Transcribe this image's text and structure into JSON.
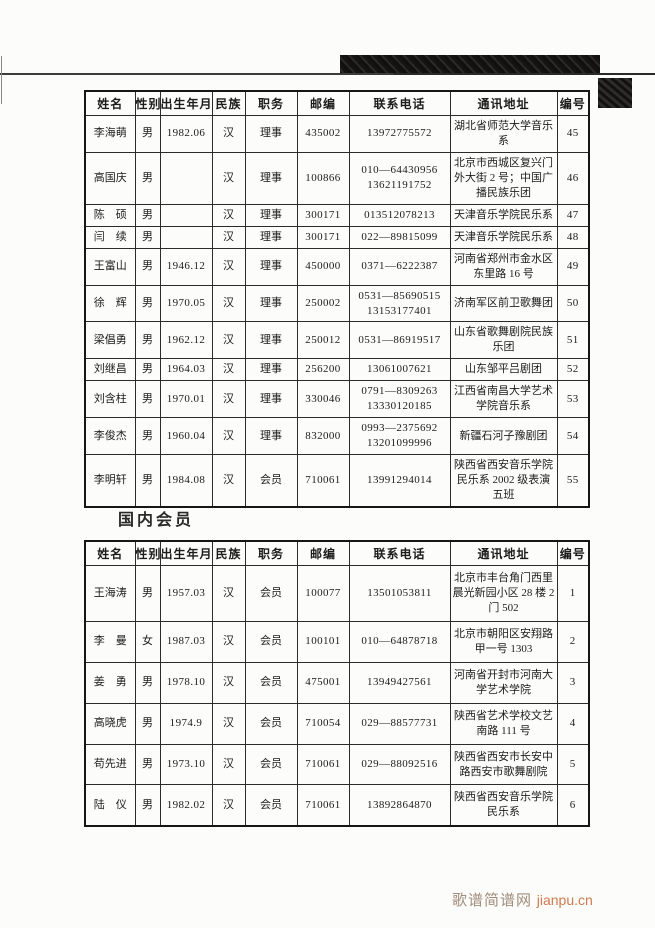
{
  "section_title": "国内会员",
  "footer": {
    "site_name": "歌谱简谱网",
    "site_url": "jianpu.cn",
    "site_name_color": "#a18d7c",
    "site_url_color": "#cf7a4e"
  },
  "table_headers": [
    "姓名",
    "性别",
    "出生年月",
    "民族",
    "职务",
    "邮编",
    "联系电话",
    "通讯地址",
    "编号"
  ],
  "column_keys": [
    "name",
    "gender",
    "birth",
    "ethnicity",
    "position",
    "postal",
    "phone",
    "address",
    "id"
  ],
  "members_table_1": {
    "rows": [
      {
        "name": "李海萌",
        "gender": "男",
        "birth": "1982.06",
        "ethnicity": "汉",
        "position": "理事",
        "postal": "435002",
        "phone": "13972775572",
        "address": "湖北省师范大学音乐系",
        "id": "45"
      },
      {
        "name": "高国庆",
        "gender": "男",
        "birth": "",
        "ethnicity": "汉",
        "position": "理事",
        "postal": "100866",
        "phone": "010—64430956\n13621191752",
        "address": "北京市西城区复兴门外大街 2 号；中国广播民族乐团",
        "id": "46"
      },
      {
        "name": "陈　硕",
        "gender": "男",
        "birth": "",
        "ethnicity": "汉",
        "position": "理事",
        "postal": "300171",
        "phone": "013512078213",
        "address": "天津音乐学院民乐系",
        "id": "47"
      },
      {
        "name": "闫　续",
        "gender": "男",
        "birth": "",
        "ethnicity": "汉",
        "position": "理事",
        "postal": "300171",
        "phone": "022—89815099",
        "address": "天津音乐学院民乐系",
        "id": "48"
      },
      {
        "name": "王富山",
        "gender": "男",
        "birth": "1946.12",
        "ethnicity": "汉",
        "position": "理事",
        "postal": "450000",
        "phone": "0371—6222387",
        "address": "河南省郑州市金水区东里路 16 号",
        "id": "49"
      },
      {
        "name": "徐　辉",
        "gender": "男",
        "birth": "1970.05",
        "ethnicity": "汉",
        "position": "理事",
        "postal": "250002",
        "phone": "0531—85690515\n13153177401",
        "address": "济南军区前卫歌舞团",
        "id": "50"
      },
      {
        "name": "梁倡勇",
        "gender": "男",
        "birth": "1962.12",
        "ethnicity": "汉",
        "position": "理事",
        "postal": "250012",
        "phone": "0531—86919517",
        "address": "山东省歌舞剧院民族乐团",
        "id": "51"
      },
      {
        "name": "刘继昌",
        "gender": "男",
        "birth": "1964.03",
        "ethnicity": "汉",
        "position": "理事",
        "postal": "256200",
        "phone": "13061007621",
        "address": "山东邹平吕剧团",
        "id": "52"
      },
      {
        "name": "刘含柱",
        "gender": "男",
        "birth": "1970.01",
        "ethnicity": "汉",
        "position": "理事",
        "postal": "330046",
        "phone": "0791—8309263\n13330120185",
        "address": "江西省南昌大学艺术学院音乐系",
        "id": "53"
      },
      {
        "name": "李俊杰",
        "gender": "男",
        "birth": "1960.04",
        "ethnicity": "汉",
        "position": "理事",
        "postal": "832000",
        "phone": "0993—2375692\n13201099996",
        "address": "新疆石河子豫剧团",
        "id": "54"
      },
      {
        "name": "李明轩",
        "gender": "男",
        "birth": "1984.08",
        "ethnicity": "汉",
        "position": "会员",
        "postal": "710061",
        "phone": "13991294014",
        "address": "陕西省西安音乐学院民乐系 2002 级表演五班",
        "id": "55"
      }
    ]
  },
  "members_table_2": {
    "rows": [
      {
        "name": "王海涛",
        "gender": "男",
        "birth": "1957.03",
        "ethnicity": "汉",
        "position": "会员",
        "postal": "100077",
        "phone": "13501053811",
        "address": "北京市丰台角门西里晨光新园小区 28 楼 2 门 502",
        "id": "1"
      },
      {
        "name": "李　曼",
        "gender": "女",
        "birth": "1987.03",
        "ethnicity": "汉",
        "position": "会员",
        "postal": "100101",
        "phone": "010—64878718",
        "address": "北京市朝阳区安翔路甲一号 1303",
        "id": "2"
      },
      {
        "name": "姜　勇",
        "gender": "男",
        "birth": "1978.10",
        "ethnicity": "汉",
        "position": "会员",
        "postal": "475001",
        "phone": "13949427561",
        "address": "河南省开封市河南大学艺术学院",
        "id": "3"
      },
      {
        "name": "高晓虎",
        "gender": "男",
        "birth": "1974.9",
        "ethnicity": "汉",
        "position": "会员",
        "postal": "710054",
        "phone": "029—88577731",
        "address": "陕西省艺术学校文艺南路 111 号",
        "id": "4"
      },
      {
        "name": "苟先进",
        "gender": "男",
        "birth": "1973.10",
        "ethnicity": "汉",
        "position": "会员",
        "postal": "710061",
        "phone": "029—88092516",
        "address": "陕西省西安市长安中路西安市歌舞剧院",
        "id": "5"
      },
      {
        "name": "陆　仪",
        "gender": "男",
        "birth": "1982.02",
        "ethnicity": "汉",
        "position": "会员",
        "postal": "710061",
        "phone": "13892864870",
        "address": "陕西省西安音乐学院民乐系",
        "id": "6"
      }
    ]
  }
}
